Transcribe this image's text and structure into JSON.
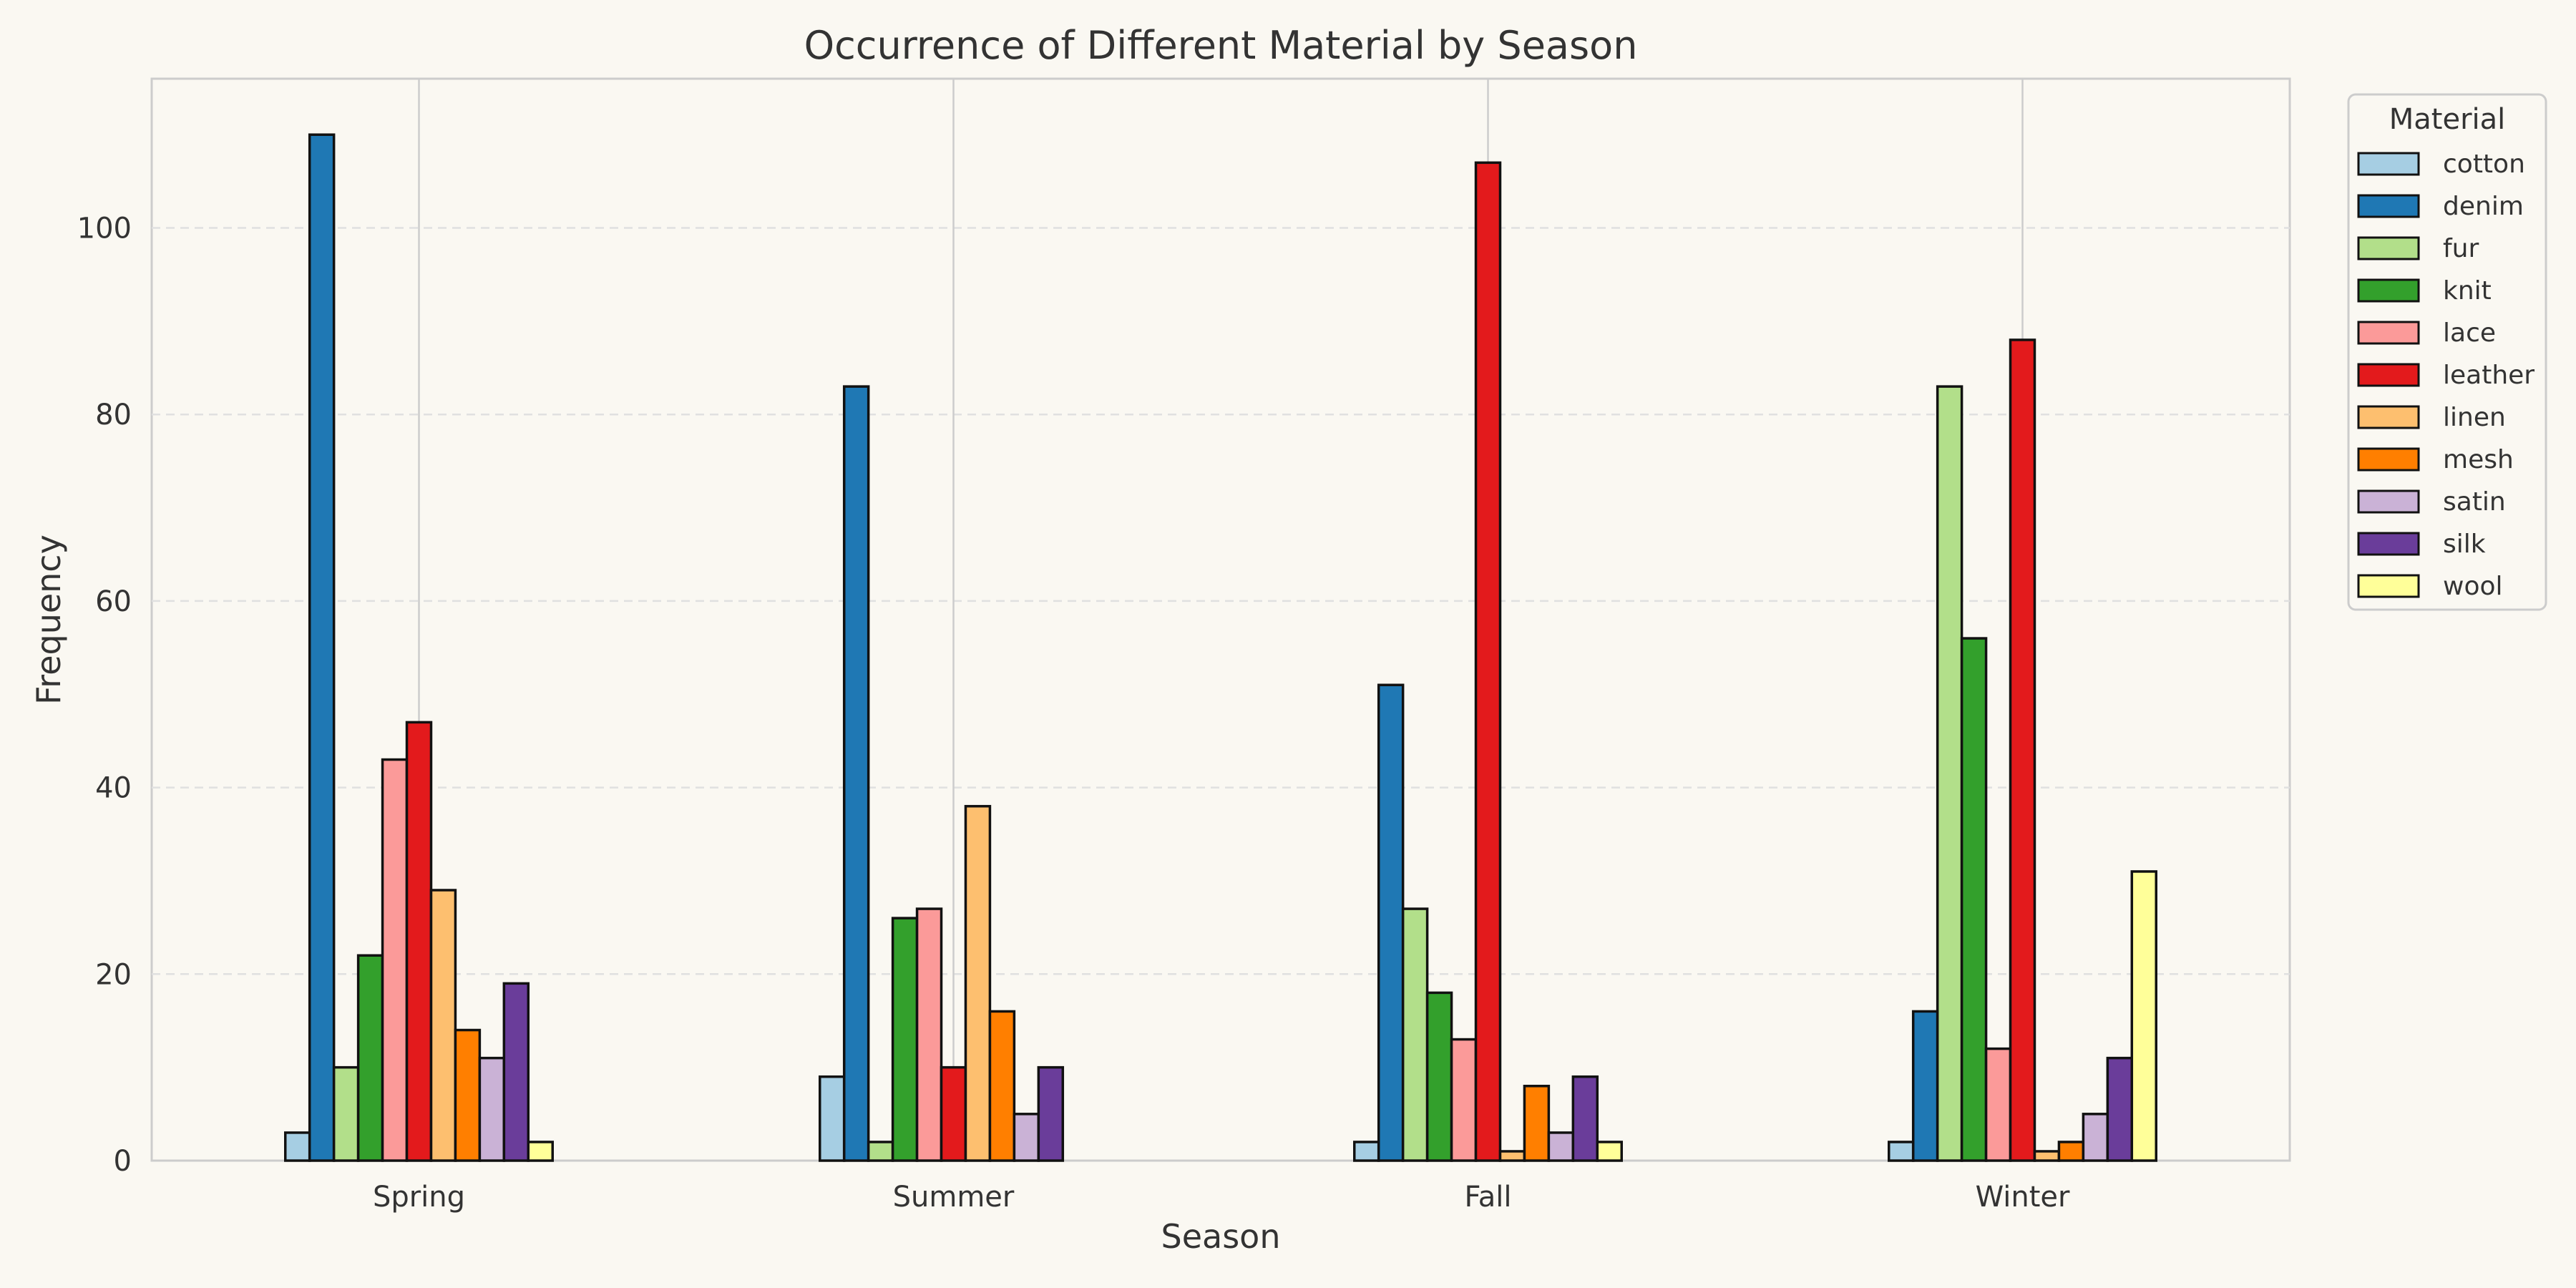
{
  "chart_data": {
    "type": "bar",
    "title": "Occurrence of Different Material by Season",
    "xlabel": "Season",
    "ylabel": "Frequency",
    "categories": [
      "Spring",
      "Summer",
      "Fall",
      "Winter"
    ],
    "ylim": [
      0,
      116
    ],
    "yticks": [
      0,
      20,
      40,
      60,
      80,
      100
    ],
    "grid": "y-dashed, vertical lines at category centers",
    "legend": {
      "title": "Material",
      "placement": "outside-top-right"
    },
    "series": [
      {
        "name": "cotton",
        "color": "#a6cee3",
        "values": [
          3,
          9,
          2,
          2
        ]
      },
      {
        "name": "denim",
        "color": "#1f78b4",
        "values": [
          110,
          83,
          51,
          16
        ]
      },
      {
        "name": "fur",
        "color": "#b2df8a",
        "values": [
          10,
          2,
          27,
          83
        ]
      },
      {
        "name": "knit",
        "color": "#33a02c",
        "values": [
          22,
          26,
          18,
          56
        ]
      },
      {
        "name": "lace",
        "color": "#fb9a99",
        "values": [
          43,
          27,
          13,
          12
        ]
      },
      {
        "name": "leather",
        "color": "#e31a1c",
        "values": [
          47,
          10,
          107,
          88
        ]
      },
      {
        "name": "linen",
        "color": "#fdbf6f",
        "values": [
          29,
          38,
          1,
          1
        ]
      },
      {
        "name": "mesh",
        "color": "#ff7f00",
        "values": [
          14,
          16,
          8,
          2
        ]
      },
      {
        "name": "satin",
        "color": "#cab2d6",
        "values": [
          11,
          5,
          3,
          5
        ]
      },
      {
        "name": "silk",
        "color": "#6a3d9a",
        "values": [
          19,
          10,
          9,
          11
        ]
      },
      {
        "name": "wool",
        "color": "#ffff99",
        "values": [
          2,
          0,
          2,
          31
        ]
      }
    ]
  }
}
